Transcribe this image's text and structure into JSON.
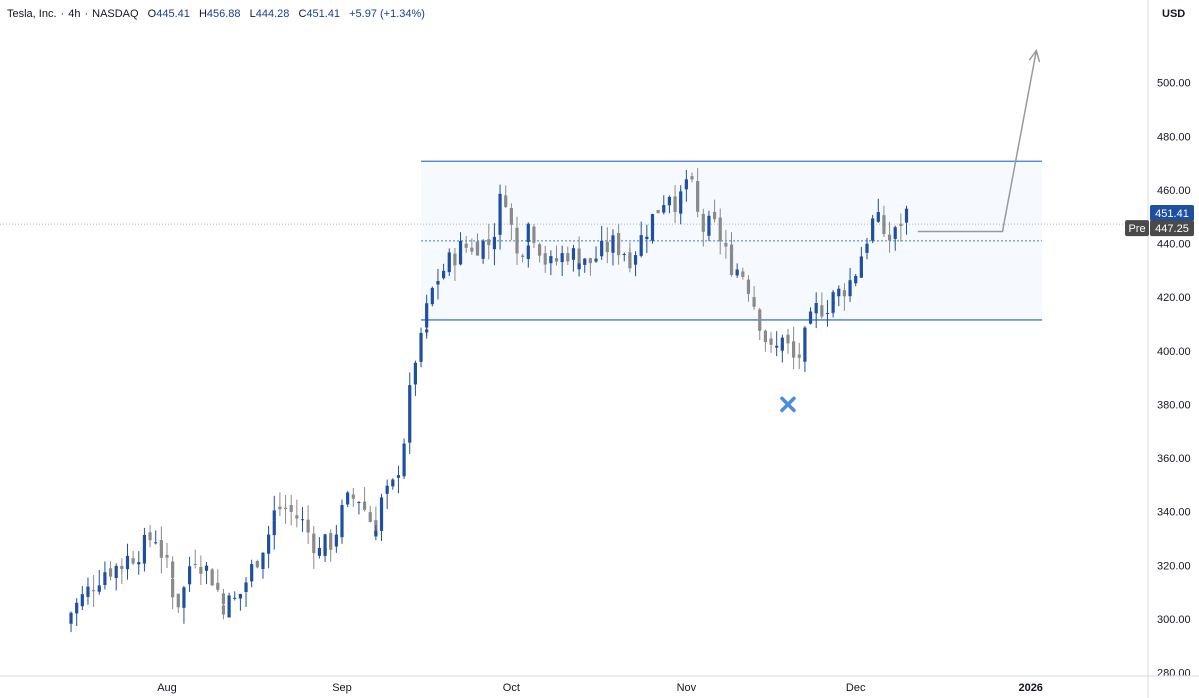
{
  "header": {
    "symbol": "Tesla, Inc.",
    "interval": "4h",
    "exchange": "NASDAQ",
    "open_label": "O",
    "open": "445.41",
    "high_label": "H",
    "high": "456.88",
    "low_label": "L",
    "low": "444.28",
    "close_label": "C",
    "close": "451.41",
    "change": "+5.97 (+1.34%)"
  },
  "axis": {
    "currency": "USD"
  },
  "price_labels": {
    "last": "451.41",
    "pre_tag": "Pre",
    "pre": "447.25"
  },
  "colors": {
    "up": "#1e4fa0",
    "down": "#8a8a8a",
    "channel": "#3a7bd5",
    "arrow": "#9a9a9a",
    "marker": "#4a8de0",
    "last_bg": "#1e4fa0",
    "pre_bg": "#4a4a4a"
  },
  "chart_data": {
    "type": "candlestick",
    "title": "",
    "ylim": [
      280,
      520
    ],
    "y_ticks": [
      280,
      300,
      320,
      340,
      360,
      380,
      400,
      420,
      440,
      460,
      480,
      500
    ],
    "y_tick_labels": [
      "280.00",
      "300.00",
      "320.00",
      "340.00",
      "360.00",
      "380.00",
      "400.00",
      "420.00",
      "440.00",
      "460.00",
      "480.00",
      "500.00"
    ],
    "x_labels": [
      "Aug",
      "Sep",
      "Oct",
      "Nov",
      "Dec",
      "2026"
    ],
    "x_dates": [
      "2025-08-01",
      "2025-09-01",
      "2025-10-01",
      "2025-11-01",
      "2025-12-01",
      "2026-01-01"
    ],
    "grid": false,
    "price_path": [
      [
        "2025-07-15",
        298
      ],
      [
        "2025-07-18",
        306
      ],
      [
        "2025-07-22",
        318
      ],
      [
        "2025-07-25",
        320
      ],
      [
        "2025-07-29",
        326
      ],
      [
        "2025-07-31",
        332
      ],
      [
        "2025-08-02",
        319
      ],
      [
        "2025-08-05",
        305
      ],
      [
        "2025-08-07",
        325
      ],
      [
        "2025-08-10",
        316
      ],
      [
        "2025-08-12",
        305
      ],
      [
        "2025-08-15",
        307
      ],
      [
        "2025-08-18",
        322
      ],
      [
        "2025-08-21",
        337
      ],
      [
        "2025-08-23",
        342
      ],
      [
        "2025-08-26",
        337
      ],
      [
        "2025-08-29",
        325
      ],
      [
        "2025-09-01",
        329
      ],
      [
        "2025-09-03",
        343
      ],
      [
        "2025-09-05",
        346
      ],
      [
        "2025-09-07",
        337
      ],
      [
        "2025-09-09",
        332
      ],
      [
        "2025-09-10",
        348
      ],
      [
        "2025-09-11",
        345
      ],
      [
        "2025-09-13",
        362
      ],
      [
        "2025-09-14",
        380
      ],
      [
        "2025-09-15",
        397
      ],
      [
        "2025-09-17",
        408
      ],
      [
        "2025-09-19",
        425
      ],
      [
        "2025-09-21",
        432
      ],
      [
        "2025-09-23",
        438
      ],
      [
        "2025-09-26",
        440
      ],
      [
        "2025-09-29",
        440
      ],
      [
        "2025-10-01",
        462
      ],
      [
        "2025-10-03",
        435
      ],
      [
        "2025-10-06",
        448
      ],
      [
        "2025-10-09",
        431
      ],
      [
        "2025-10-12",
        437
      ],
      [
        "2025-10-16",
        432
      ],
      [
        "2025-10-20",
        440
      ],
      [
        "2025-10-24",
        435
      ],
      [
        "2025-10-27",
        448
      ],
      [
        "2025-10-30",
        460
      ],
      [
        "2025-11-01",
        452
      ],
      [
        "2025-11-03",
        466
      ],
      [
        "2025-11-05",
        445
      ],
      [
        "2025-11-07",
        447
      ],
      [
        "2025-11-10",
        434
      ],
      [
        "2025-11-13",
        428
      ],
      [
        "2025-11-17",
        399
      ],
      [
        "2025-11-20",
        404
      ],
      [
        "2025-11-22",
        395
      ],
      [
        "2025-11-25",
        415
      ],
      [
        "2025-11-29",
        420
      ],
      [
        "2025-12-02",
        427
      ],
      [
        "2025-12-05",
        448
      ],
      [
        "2025-12-07",
        447
      ],
      [
        "2025-12-09",
        440
      ],
      [
        "2025-12-11",
        451.41
      ]
    ],
    "channel": {
      "upper": 470.7,
      "lower": 411.5,
      "start": "2025-09-15",
      "end": "2026-01-03"
    },
    "mid_dotted": 441,
    "last_price": 451.41,
    "pre_price": 447.25,
    "projection": [
      [
        "2025-12-12",
        444.5
      ],
      [
        "2025-12-27",
        444.5
      ],
      [
        "2026-01-02",
        512
      ]
    ],
    "marker": {
      "date": "2025-11-19",
      "price": 380
    }
  }
}
